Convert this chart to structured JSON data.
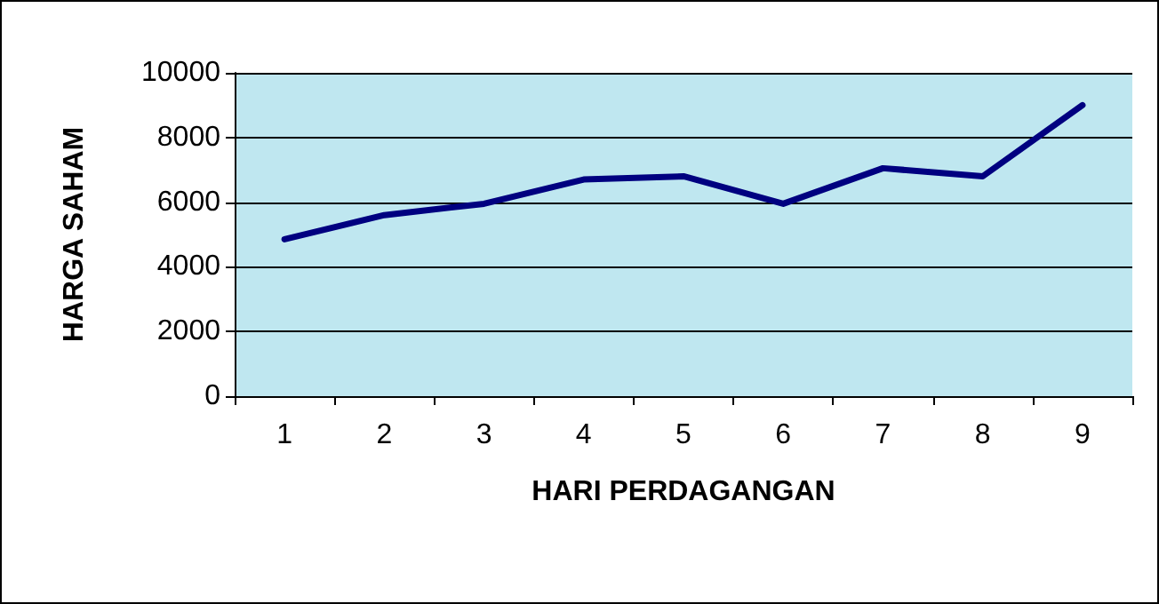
{
  "chart_data": {
    "type": "line",
    "xlabel": "HARI PERDAGANGAN",
    "ylabel": "HARGA SAHAM",
    "categories": [
      "1",
      "2",
      "3",
      "4",
      "5",
      "6",
      "7",
      "8",
      "9"
    ],
    "series": [
      {
        "color": "#000080",
        "values": [
          4850,
          5600,
          5950,
          6700,
          6800,
          5950,
          7050,
          6800,
          9000
        ]
      }
    ],
    "ylim": [
      0,
      10000
    ],
    "yticks": [
      0,
      2000,
      4000,
      6000,
      8000,
      10000
    ],
    "grid": "y",
    "marker": "none",
    "line_style": "solid"
  }
}
